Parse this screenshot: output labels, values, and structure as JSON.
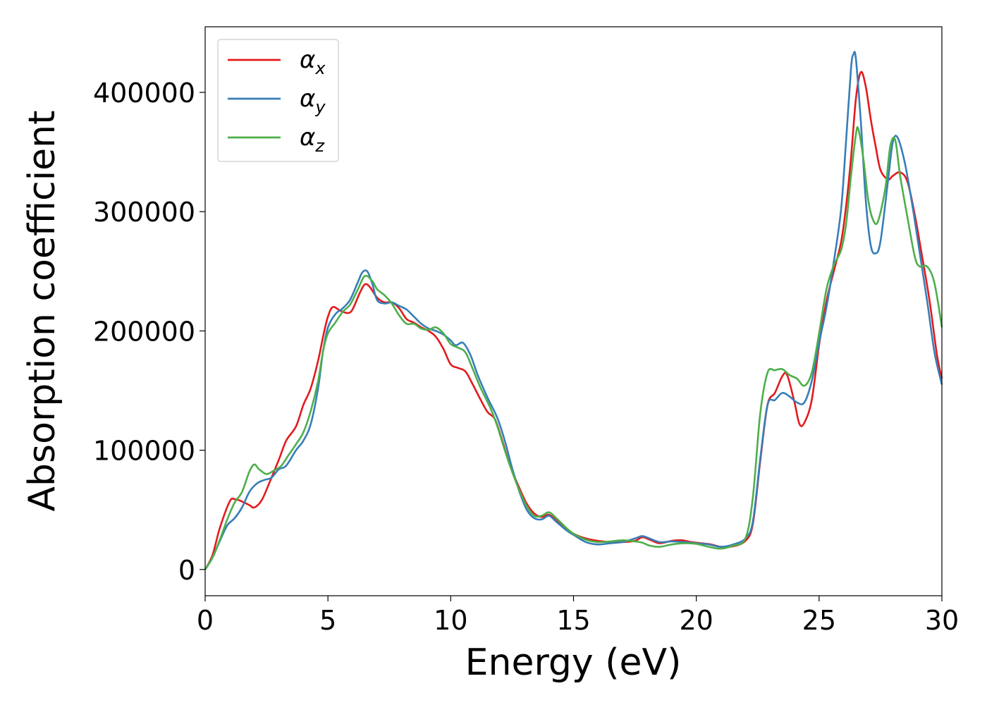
{
  "chart_data": {
    "type": "line",
    "xlabel": "Energy (eV)",
    "ylabel": "Absorption coefficient",
    "xlim": [
      0,
      30
    ],
    "ylim": [
      -22000,
      455000
    ],
    "xticks": [
      0,
      5,
      10,
      15,
      20,
      25,
      30
    ],
    "yticks": [
      0,
      100000,
      200000,
      300000,
      400000
    ],
    "grid": false,
    "legend_position": "top-left",
    "series": [
      {
        "name": "α",
        "subscript": "x",
        "color": "#e41a1c",
        "points": [
          [
            0,
            0
          ],
          [
            0.3,
            12000
          ],
          [
            0.6,
            35000
          ],
          [
            1.0,
            57000
          ],
          [
            1.2,
            59000
          ],
          [
            1.5,
            57000
          ],
          [
            1.8,
            54000
          ],
          [
            2.0,
            52000
          ],
          [
            2.3,
            58000
          ],
          [
            2.6,
            72000
          ],
          [
            3.0,
            92000
          ],
          [
            3.3,
            108000
          ],
          [
            3.7,
            120000
          ],
          [
            4.0,
            138000
          ],
          [
            4.3,
            152000
          ],
          [
            4.6,
            175000
          ],
          [
            4.8,
            195000
          ],
          [
            5.0,
            212000
          ],
          [
            5.2,
            220000
          ],
          [
            5.5,
            217000
          ],
          [
            5.8,
            215000
          ],
          [
            6.0,
            218000
          ],
          [
            6.3,
            232000
          ],
          [
            6.5,
            239000
          ],
          [
            6.7,
            237000
          ],
          [
            7.0,
            228000
          ],
          [
            7.3,
            224000
          ],
          [
            7.6,
            224000
          ],
          [
            7.9,
            219000
          ],
          [
            8.2,
            210000
          ],
          [
            8.5,
            207000
          ],
          [
            8.8,
            203000
          ],
          [
            9.1,
            200000
          ],
          [
            9.4,
            195000
          ],
          [
            9.7,
            185000
          ],
          [
            10.0,
            172000
          ],
          [
            10.3,
            169000
          ],
          [
            10.6,
            166000
          ],
          [
            10.9,
            155000
          ],
          [
            11.2,
            143000
          ],
          [
            11.5,
            132000
          ],
          [
            11.8,
            126000
          ],
          [
            12.1,
            108000
          ],
          [
            12.4,
            88000
          ],
          [
            12.8,
            68000
          ],
          [
            13.1,
            55000
          ],
          [
            13.4,
            47000
          ],
          [
            13.7,
            44000
          ],
          [
            14.0,
            46000
          ],
          [
            14.3,
            41000
          ],
          [
            14.7,
            34000
          ],
          [
            15.0,
            30000
          ],
          [
            15.5,
            26000
          ],
          [
            16.0,
            24000
          ],
          [
            16.5,
            23000
          ],
          [
            17.0,
            23000
          ],
          [
            17.5,
            24000
          ],
          [
            17.8,
            27000
          ],
          [
            18.1,
            25000
          ],
          [
            18.5,
            22000
          ],
          [
            19.0,
            24000
          ],
          [
            19.4,
            24500
          ],
          [
            19.8,
            23000
          ],
          [
            20.2,
            22000
          ],
          [
            20.6,
            21000
          ],
          [
            21.0,
            19000
          ],
          [
            21.5,
            19500
          ],
          [
            22.0,
            24000
          ],
          [
            22.3,
            38000
          ],
          [
            22.6,
            90000
          ],
          [
            22.9,
            138000
          ],
          [
            23.2,
            148000
          ],
          [
            23.5,
            162000
          ],
          [
            23.7,
            163000
          ],
          [
            24.0,
            140000
          ],
          [
            24.2,
            122000
          ],
          [
            24.4,
            123000
          ],
          [
            24.7,
            142000
          ],
          [
            25.0,
            188000
          ],
          [
            25.3,
            225000
          ],
          [
            25.6,
            250000
          ],
          [
            25.9,
            275000
          ],
          [
            26.1,
            305000
          ],
          [
            26.3,
            345000
          ],
          [
            26.5,
            395000
          ],
          [
            26.7,
            417000
          ],
          [
            26.9,
            405000
          ],
          [
            27.1,
            378000
          ],
          [
            27.3,
            355000
          ],
          [
            27.5,
            335000
          ],
          [
            27.8,
            327000
          ],
          [
            28.0,
            330000
          ],
          [
            28.3,
            333000
          ],
          [
            28.6,
            325000
          ],
          [
            28.9,
            297000
          ],
          [
            29.2,
            262000
          ],
          [
            29.5,
            225000
          ],
          [
            29.8,
            180000
          ],
          [
            30.0,
            160000
          ]
        ]
      },
      {
        "name": "α",
        "subscript": "y",
        "color": "#377eb8",
        "points": [
          [
            0,
            0
          ],
          [
            0.3,
            10000
          ],
          [
            0.6,
            24000
          ],
          [
            0.9,
            37000
          ],
          [
            1.2,
            43000
          ],
          [
            1.5,
            52000
          ],
          [
            1.8,
            65000
          ],
          [
            2.1,
            72000
          ],
          [
            2.4,
            75000
          ],
          [
            2.7,
            77000
          ],
          [
            3.0,
            84000
          ],
          [
            3.3,
            87000
          ],
          [
            3.7,
            100000
          ],
          [
            4.0,
            108000
          ],
          [
            4.3,
            122000
          ],
          [
            4.6,
            152000
          ],
          [
            4.8,
            183000
          ],
          [
            5.0,
            203000
          ],
          [
            5.3,
            214000
          ],
          [
            5.6,
            219000
          ],
          [
            5.9,
            226000
          ],
          [
            6.2,
            240000
          ],
          [
            6.4,
            249000
          ],
          [
            6.6,
            250000
          ],
          [
            6.8,
            240000
          ],
          [
            7.0,
            226000
          ],
          [
            7.3,
            223000
          ],
          [
            7.6,
            224000
          ],
          [
            7.9,
            221000
          ],
          [
            8.2,
            218000
          ],
          [
            8.5,
            212000
          ],
          [
            8.8,
            206000
          ],
          [
            9.1,
            202000
          ],
          [
            9.4,
            200000
          ],
          [
            9.7,
            197000
          ],
          [
            10.0,
            192000
          ],
          [
            10.2,
            188000
          ],
          [
            10.5,
            190000
          ],
          [
            10.8,
            180000
          ],
          [
            11.1,
            163000
          ],
          [
            11.5,
            144000
          ],
          [
            11.9,
            127000
          ],
          [
            12.2,
            108000
          ],
          [
            12.5,
            85000
          ],
          [
            12.8,
            65000
          ],
          [
            13.1,
            50000
          ],
          [
            13.4,
            43000
          ],
          [
            13.7,
            42000
          ],
          [
            14.0,
            45000
          ],
          [
            14.3,
            40000
          ],
          [
            14.7,
            33000
          ],
          [
            15.0,
            29000
          ],
          [
            15.5,
            23000
          ],
          [
            16.0,
            21000
          ],
          [
            16.5,
            22000
          ],
          [
            17.0,
            23000
          ],
          [
            17.5,
            26000
          ],
          [
            17.8,
            28000
          ],
          [
            18.1,
            26000
          ],
          [
            18.5,
            23000
          ],
          [
            19.0,
            23500
          ],
          [
            19.5,
            23000
          ],
          [
            20.0,
            22000
          ],
          [
            20.5,
            21000
          ],
          [
            21.0,
            19000
          ],
          [
            21.5,
            21000
          ],
          [
            22.0,
            26000
          ],
          [
            22.3,
            40000
          ],
          [
            22.6,
            92000
          ],
          [
            22.9,
            138000
          ],
          [
            23.2,
            142000
          ],
          [
            23.5,
            148000
          ],
          [
            23.8,
            145000
          ],
          [
            24.1,
            140000
          ],
          [
            24.4,
            140000
          ],
          [
            24.7,
            158000
          ],
          [
            25.0,
            190000
          ],
          [
            25.3,
            220000
          ],
          [
            25.6,
            258000
          ],
          [
            25.9,
            303000
          ],
          [
            26.1,
            360000
          ],
          [
            26.3,
            420000
          ],
          [
            26.4,
            432000
          ],
          [
            26.5,
            428000
          ],
          [
            26.7,
            375000
          ],
          [
            26.9,
            310000
          ],
          [
            27.1,
            272000
          ],
          [
            27.3,
            265000
          ],
          [
            27.5,
            275000
          ],
          [
            27.8,
            325000
          ],
          [
            28.0,
            358000
          ],
          [
            28.2,
            362000
          ],
          [
            28.5,
            340000
          ],
          [
            28.8,
            305000
          ],
          [
            29.1,
            265000
          ],
          [
            29.4,
            225000
          ],
          [
            29.7,
            182000
          ],
          [
            30.0,
            155000
          ]
        ]
      },
      {
        "name": "α",
        "subscript": "z",
        "color": "#4daf4a",
        "points": [
          [
            0,
            0
          ],
          [
            0.3,
            10000
          ],
          [
            0.6,
            25000
          ],
          [
            0.9,
            42000
          ],
          [
            1.2,
            56000
          ],
          [
            1.5,
            65000
          ],
          [
            1.8,
            82000
          ],
          [
            2.0,
            88000
          ],
          [
            2.2,
            84000
          ],
          [
            2.5,
            80000
          ],
          [
            2.8,
            83000
          ],
          [
            3.1,
            87000
          ],
          [
            3.4,
            96000
          ],
          [
            3.7,
            105000
          ],
          [
            4.0,
            115000
          ],
          [
            4.3,
            133000
          ],
          [
            4.6,
            158000
          ],
          [
            4.8,
            183000
          ],
          [
            5.0,
            198000
          ],
          [
            5.3,
            207000
          ],
          [
            5.6,
            216000
          ],
          [
            5.9,
            222000
          ],
          [
            6.2,
            234000
          ],
          [
            6.5,
            246000
          ],
          [
            6.8,
            242000
          ],
          [
            7.0,
            235000
          ],
          [
            7.3,
            230000
          ],
          [
            7.6,
            223000
          ],
          [
            7.9,
            213000
          ],
          [
            8.2,
            206000
          ],
          [
            8.5,
            206000
          ],
          [
            8.8,
            202000
          ],
          [
            9.1,
            201000
          ],
          [
            9.4,
            203000
          ],
          [
            9.7,
            198000
          ],
          [
            10.0,
            189000
          ],
          [
            10.3,
            186000
          ],
          [
            10.6,
            182000
          ],
          [
            10.9,
            168000
          ],
          [
            11.2,
            153000
          ],
          [
            11.6,
            136000
          ],
          [
            11.9,
            120000
          ],
          [
            12.2,
            100000
          ],
          [
            12.5,
            82000
          ],
          [
            12.8,
            66000
          ],
          [
            13.1,
            53000
          ],
          [
            13.4,
            45000
          ],
          [
            13.7,
            45000
          ],
          [
            14.0,
            48000
          ],
          [
            14.3,
            43000
          ],
          [
            14.7,
            35000
          ],
          [
            15.0,
            30000
          ],
          [
            15.5,
            25000
          ],
          [
            16.0,
            23000
          ],
          [
            16.5,
            23500
          ],
          [
            17.0,
            24500
          ],
          [
            17.5,
            23500
          ],
          [
            17.8,
            22500
          ],
          [
            18.1,
            20000
          ],
          [
            18.5,
            19000
          ],
          [
            19.0,
            21000
          ],
          [
            19.5,
            22000
          ],
          [
            20.0,
            21500
          ],
          [
            20.5,
            19000
          ],
          [
            21.0,
            17500
          ],
          [
            21.5,
            20000
          ],
          [
            22.0,
            26000
          ],
          [
            22.3,
            60000
          ],
          [
            22.6,
            130000
          ],
          [
            22.9,
            165000
          ],
          [
            23.2,
            167000
          ],
          [
            23.5,
            168000
          ],
          [
            23.8,
            163000
          ],
          [
            24.1,
            160000
          ],
          [
            24.4,
            154000
          ],
          [
            24.7,
            165000
          ],
          [
            25.0,
            198000
          ],
          [
            25.3,
            235000
          ],
          [
            25.6,
            255000
          ],
          [
            25.9,
            268000
          ],
          [
            26.1,
            290000
          ],
          [
            26.3,
            330000
          ],
          [
            26.5,
            365000
          ],
          [
            26.6,
            369000
          ],
          [
            26.8,
            345000
          ],
          [
            27.0,
            310000
          ],
          [
            27.2,
            293000
          ],
          [
            27.4,
            292000
          ],
          [
            27.7,
            320000
          ],
          [
            27.9,
            355000
          ],
          [
            28.1,
            360000
          ],
          [
            28.3,
            330000
          ],
          [
            28.6,
            295000
          ],
          [
            28.9,
            262000
          ],
          [
            29.1,
            254000
          ],
          [
            29.4,
            254000
          ],
          [
            29.7,
            240000
          ],
          [
            30.0,
            203000
          ]
        ]
      }
    ]
  }
}
